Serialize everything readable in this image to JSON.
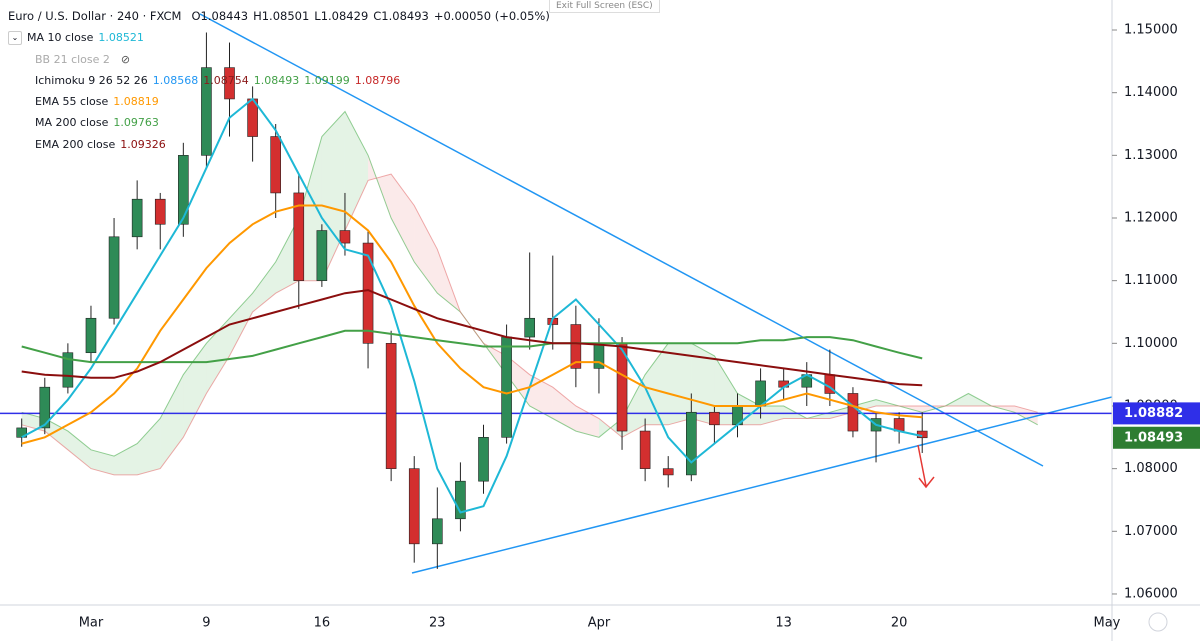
{
  "header": {
    "symbol": "Euro / U.S. Dollar · 240 · FXCM",
    "ohlc": [
      "O1.08443",
      "H1.08501",
      "L1.08429",
      "C1.08493",
      "+0.00050 (+0.05%)"
    ]
  },
  "fullscreen_hint": "Exit Full Screen (ESC)",
  "chart_data": {
    "type": "candlestick",
    "categories": [
      null,
      null,
      null,
      "Mar",
      null,
      null,
      null,
      null,
      "9",
      null,
      null,
      null,
      null,
      "16",
      null,
      null,
      null,
      null,
      "23",
      null,
      null,
      null,
      null,
      null,
      null,
      "Apr",
      null,
      null,
      null,
      null,
      null,
      null,
      null,
      "13",
      null,
      null,
      null,
      null,
      "20",
      null,
      null,
      null,
      null,
      null,
      null,
      null,
      null,
      "May"
    ],
    "open": [
      1.085,
      1.0865,
      1.093,
      1.0985,
      1.104,
      1.117,
      1.123,
      1.119,
      1.13,
      1.144,
      1.139,
      1.133,
      1.124,
      1.11,
      1.118,
      1.116,
      1.1,
      1.08,
      1.068,
      1.072,
      1.078,
      1.085,
      1.101,
      1.104,
      1.103,
      1.096,
      1.1,
      1.086,
      1.08,
      1.079,
      1.089,
      1.087,
      1.09,
      1.094,
      1.093,
      1.095,
      1.092,
      1.086,
      1.088,
      1.086,
      null,
      null,
      null,
      null,
      null,
      null,
      null,
      null
    ],
    "high": [
      1.088,
      1.0945,
      1.1,
      1.106,
      1.12,
      1.126,
      1.124,
      1.132,
      1.1496,
      1.148,
      1.141,
      1.135,
      1.127,
      1.119,
      1.124,
      1.118,
      1.102,
      1.082,
      1.077,
      1.081,
      1.087,
      1.103,
      1.1145,
      1.114,
      1.106,
      1.104,
      1.101,
      1.088,
      1.082,
      1.092,
      1.09,
      1.092,
      1.096,
      1.096,
      1.097,
      1.099,
      1.093,
      1.089,
      1.089,
      1.089,
      null,
      null,
      null,
      null,
      null,
      null,
      null,
      null
    ],
    "low": [
      1.0835,
      1.0855,
      1.092,
      1.097,
      1.103,
      1.115,
      1.115,
      1.117,
      1.128,
      1.133,
      1.129,
      1.12,
      1.1055,
      1.109,
      1.114,
      1.096,
      1.078,
      1.065,
      1.064,
      1.07,
      1.076,
      1.084,
      1.099,
      1.099,
      1.093,
      1.092,
      1.083,
      1.078,
      1.077,
      1.078,
      1.084,
      1.085,
      1.088,
      1.091,
      1.09,
      1.09,
      1.085,
      1.081,
      1.084,
      1.0825,
      null,
      null,
      null,
      null,
      null,
      null,
      null,
      null
    ],
    "close": [
      1.0865,
      1.093,
      1.0985,
      1.104,
      1.117,
      1.123,
      1.119,
      1.13,
      1.144,
      1.139,
      1.133,
      1.124,
      1.11,
      1.118,
      1.116,
      1.1,
      1.08,
      1.068,
      1.072,
      1.078,
      1.085,
      1.101,
      1.104,
      1.103,
      1.096,
      1.1,
      1.086,
      1.08,
      1.079,
      1.089,
      1.087,
      1.09,
      1.094,
      1.093,
      1.095,
      1.092,
      1.086,
      1.088,
      1.086,
      1.08493,
      null,
      null,
      null,
      null,
      null,
      null,
      null,
      null
    ],
    "up_color": "#2e8b57",
    "down_color": "#d32f2f",
    "series": [
      {
        "name": "MA 10 close",
        "legend_value": "1.08521",
        "color": "#1eb8d6",
        "values": [
          1.085,
          1.087,
          1.091,
          1.096,
          1.102,
          1.108,
          1.114,
          1.12,
          1.128,
          1.136,
          1.139,
          1.134,
          1.127,
          1.12,
          1.115,
          1.114,
          1.106,
          1.094,
          1.08,
          1.073,
          1.074,
          1.082,
          1.093,
          1.104,
          1.107,
          1.103,
          1.099,
          1.093,
          1.085,
          1.081,
          1.084,
          1.087,
          1.09,
          1.093,
          1.095,
          1.093,
          1.09,
          1.087,
          1.086,
          1.0852,
          null,
          null,
          null,
          null,
          null,
          null,
          null,
          null
        ]
      },
      {
        "name": "EMA 55 close",
        "legend_value": "1.08819",
        "color": "#ff9800",
        "values": [
          1.084,
          1.085,
          1.087,
          1.089,
          1.092,
          1.096,
          1.102,
          1.107,
          1.112,
          1.116,
          1.119,
          1.121,
          1.122,
          1.122,
          1.121,
          1.118,
          1.113,
          1.106,
          1.1,
          1.096,
          1.093,
          1.092,
          1.093,
          1.095,
          1.097,
          1.097,
          1.095,
          1.093,
          1.092,
          1.091,
          1.09,
          1.09,
          1.09,
          1.091,
          1.092,
          1.091,
          1.09,
          1.089,
          1.0885,
          1.0882,
          null,
          null,
          null,
          null,
          null,
          null,
          null,
          null
        ]
      },
      {
        "name": "MA 200 close",
        "legend_value": "1.09763",
        "color": "#43a047",
        "values": [
          1.0995,
          1.0985,
          1.0975,
          1.097,
          1.097,
          1.097,
          1.097,
          1.097,
          1.097,
          1.0975,
          1.098,
          1.099,
          1.1,
          1.101,
          1.102,
          1.102,
          1.1015,
          1.101,
          1.1005,
          1.1,
          1.0995,
          1.0995,
          1.0995,
          1.1,
          1.1,
          1.1,
          1.1,
          1.1,
          1.1,
          1.1,
          1.1,
          1.1,
          1.1005,
          1.1005,
          1.101,
          1.101,
          1.1005,
          1.0995,
          1.0985,
          1.0976,
          null,
          null,
          null,
          null,
          null,
          null,
          null,
          null
        ]
      },
      {
        "name": "EMA 200 close",
        "legend_value": "1.09326",
        "color": "#8b0e0e",
        "values": [
          1.0955,
          1.095,
          1.0948,
          1.0945,
          1.0945,
          1.0955,
          1.097,
          1.099,
          1.101,
          1.103,
          1.104,
          1.105,
          1.106,
          1.107,
          1.108,
          1.1085,
          1.107,
          1.1055,
          1.104,
          1.103,
          1.102,
          1.101,
          1.1005,
          1.1,
          1.1,
          1.0998,
          1.0995,
          1.099,
          1.0985,
          1.098,
          1.0975,
          1.097,
          1.0965,
          1.096,
          1.0955,
          1.095,
          1.0945,
          1.094,
          1.0935,
          1.0933,
          null,
          null,
          null,
          null,
          null,
          null,
          null,
          null
        ]
      }
    ],
    "bb": {
      "name": "BB 21 close 2"
    },
    "ichimoku": {
      "name": "Ichimoku 9 26 52 26",
      "legend_values": [
        "1.08568",
        "1.08754",
        "1.08493",
        "1.09199",
        "1.08796"
      ],
      "legend_colors": [
        "#2196f3",
        "#8b1a1a",
        "#43a047",
        "#43a047",
        "#c62828"
      ],
      "color_a": "#4caf50",
      "color_b": "#e57373",
      "span_a": [
        1.089,
        1.088,
        1.086,
        1.083,
        1.082,
        1.084,
        1.088,
        1.095,
        1.1,
        1.104,
        1.108,
        1.113,
        1.12,
        1.133,
        1.137,
        1.13,
        1.12,
        1.113,
        1.108,
        1.105,
        1.1,
        1.095,
        1.09,
        1.088,
        1.086,
        1.085,
        1.088,
        1.095,
        1.1,
        1.1,
        1.098,
        1.092,
        1.09,
        1.09,
        1.088,
        1.089,
        1.09,
        1.091,
        1.09,
        1.089,
        1.09,
        1.092,
        1.09,
        1.089,
        1.087,
        null,
        null,
        null
      ],
      "span_b": [
        1.087,
        1.086,
        1.083,
        1.08,
        1.079,
        1.079,
        1.08,
        1.085,
        1.092,
        1.098,
        1.105,
        1.108,
        1.11,
        1.11,
        1.118,
        1.126,
        1.127,
        1.122,
        1.115,
        1.105,
        1.1,
        1.098,
        1.095,
        1.093,
        1.09,
        1.088,
        1.085,
        1.087,
        1.087,
        1.088,
        1.087,
        1.087,
        1.087,
        1.088,
        1.088,
        1.088,
        1.089,
        1.09,
        1.09,
        1.09,
        1.09,
        1.09,
        1.09,
        1.09,
        1.089,
        null,
        null,
        null
      ]
    },
    "price_levels": [
      {
        "value": 1.08882,
        "color": "#2f2fe8",
        "line": true
      },
      {
        "value": 1.08493,
        "color": "#2e7d32",
        "line": false
      }
    ],
    "ylim": [
      1.05824,
      1.15479
    ],
    "yticks": [
      {
        "value": 1.06,
        "label": "1.06000"
      },
      {
        "value": 1.07,
        "label": "1.07000"
      },
      {
        "value": 1.08,
        "label": "1.08000"
      },
      {
        "value": 1.09,
        "label": "1.09000"
      },
      {
        "value": 1.1,
        "label": "1.10000"
      },
      {
        "value": 1.11,
        "label": "1.11000"
      },
      {
        "value": 1.12,
        "label": "1.12000"
      },
      {
        "value": 1.13,
        "label": "1.13000"
      },
      {
        "value": 1.14,
        "label": "1.14000"
      },
      {
        "value": 1.15,
        "label": "1.15000"
      }
    ],
    "grid": false
  }
}
